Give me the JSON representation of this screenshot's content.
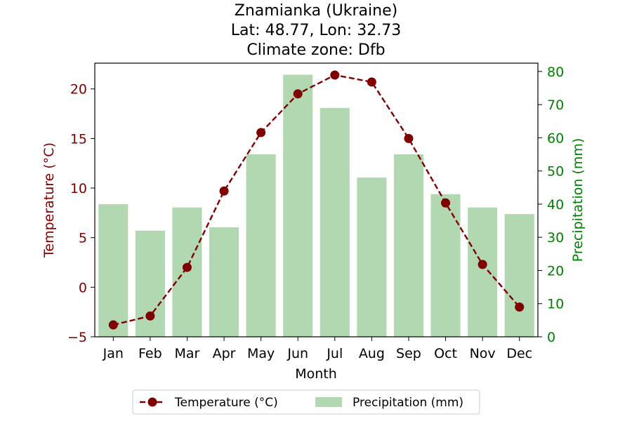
{
  "chart_data": {
    "type": "bar",
    "title_lines": [
      "Znamianka (Ukraine)",
      "Lat: 48.77, Lon: 32.73",
      "Climate zone: Dfb"
    ],
    "xlabel": "Month",
    "categories": [
      "Jan",
      "Feb",
      "Mar",
      "Apr",
      "May",
      "Jun",
      "Jul",
      "Aug",
      "Sep",
      "Oct",
      "Nov",
      "Dec"
    ],
    "series": [
      {
        "name": "Temperature (°C)",
        "type": "line",
        "axis": "left",
        "values": [
          -3.8,
          -2.9,
          2.0,
          9.7,
          15.6,
          19.5,
          21.4,
          20.7,
          15.0,
          8.5,
          2.3,
          -2.0
        ],
        "color": "#800000"
      },
      {
        "name": "Precipitation (mm)",
        "type": "bar",
        "axis": "right",
        "values": [
          40,
          32,
          39,
          33,
          55,
          79,
          69,
          48,
          55,
          43,
          39,
          37
        ],
        "color": "#b2d8b2"
      }
    ],
    "y_left": {
      "label": "Temperature (°C)",
      "range": [
        -5,
        22.6
      ],
      "ticks": [
        -5,
        0,
        5,
        10,
        15,
        20
      ],
      "tick_labels": [
        "−5",
        "0",
        "5",
        "10",
        "15",
        "20"
      ],
      "color": "#800000"
    },
    "y_right": {
      "label": "Precipitation (mm)",
      "range": [
        0,
        82.5
      ],
      "ticks": [
        0,
        10,
        20,
        30,
        40,
        50,
        60,
        70,
        80
      ],
      "tick_labels": [
        "0",
        "10",
        "20",
        "30",
        "40",
        "50",
        "60",
        "70",
        "80"
      ],
      "color": "#008000"
    },
    "grid": false,
    "legend_position": "bottom-center"
  }
}
